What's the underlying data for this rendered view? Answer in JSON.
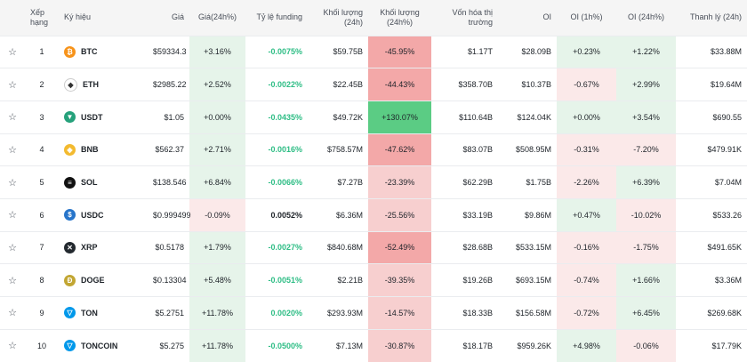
{
  "header": {
    "rank": "Xếp hạng",
    "symbol": "Ký hiệu",
    "price": "Giá",
    "price_change": "Giá(24h%)",
    "funding": "Tỷ lệ funding",
    "volume": "Khối lượng (24h)",
    "volume_change": "Khối lượng (24h%)",
    "market_cap_1": "Vốn hóa thị",
    "market_cap_2": "trường",
    "oi": "OI",
    "oi_1h": "OI (1h%)",
    "oi_24h": "OI (24h%)",
    "liq": "Thanh lý (24h)"
  },
  "rows": [
    {
      "rank": "1",
      "symbol": "BTC",
      "icon": "btc-icon",
      "glyph": "₿",
      "color": "#f7931a",
      "price": "$59334.3",
      "price_change": "+3.16%",
      "funding": "-0.0075%",
      "volume": "$59.75B",
      "volume_change": "-45.95%",
      "market_cap": "$1.17T",
      "oi": "$28.09B",
      "oi_1h": "+0.23%",
      "oi_24h": "+1.22%",
      "liq": "$33.88M"
    },
    {
      "rank": "2",
      "symbol": "ETH",
      "icon": "eth-icon",
      "glyph": "◆",
      "color": "#ffffff",
      "price": "$2985.22",
      "price_change": "+2.52%",
      "funding": "-0.0022%",
      "volume": "$22.45B",
      "volume_change": "-44.43%",
      "market_cap": "$358.70B",
      "oi": "$10.37B",
      "oi_1h": "-0.67%",
      "oi_24h": "+2.99%",
      "liq": "$19.64M"
    },
    {
      "rank": "3",
      "symbol": "USDT",
      "icon": "usdt-icon",
      "glyph": "▼",
      "color": "#26a17b",
      "price": "$1.05",
      "price_change": "+0.00%",
      "funding": "-0.0435%",
      "volume": "$49.72K",
      "volume_change": "+130.07%",
      "market_cap": "$110.64B",
      "oi": "$124.04K",
      "oi_1h": "+0.00%",
      "oi_24h": "+3.54%",
      "liq": "$690.55"
    },
    {
      "rank": "4",
      "symbol": "BNB",
      "icon": "bnb-icon",
      "glyph": "◈",
      "color": "#f3ba2f",
      "price": "$562.37",
      "price_change": "+2.71%",
      "funding": "-0.0016%",
      "volume": "$758.57M",
      "volume_change": "-47.62%",
      "market_cap": "$83.07B",
      "oi": "$508.95M",
      "oi_1h": "-0.31%",
      "oi_24h": "-7.20%",
      "liq": "$479.91K"
    },
    {
      "rank": "5",
      "symbol": "SOL",
      "icon": "sol-icon",
      "glyph": "≡",
      "color": "#111111",
      "price": "$138.546",
      "price_change": "+6.84%",
      "funding": "-0.0066%",
      "volume": "$7.27B",
      "volume_change": "-23.39%",
      "market_cap": "$62.29B",
      "oi": "$1.75B",
      "oi_1h": "-2.26%",
      "oi_24h": "+6.39%",
      "liq": "$7.04M"
    },
    {
      "rank": "6",
      "symbol": "USDC",
      "icon": "usdc-icon",
      "glyph": "$",
      "color": "#2775ca",
      "price": "$0.999499",
      "price_change": "-0.09%",
      "funding": "0.0052%",
      "volume": "$6.36M",
      "volume_change": "-25.56%",
      "market_cap": "$33.19B",
      "oi": "$9.86M",
      "oi_1h": "+0.47%",
      "oi_24h": "-10.02%",
      "liq": "$533.26"
    },
    {
      "rank": "7",
      "symbol": "XRP",
      "icon": "xrp-icon",
      "glyph": "✕",
      "color": "#23292f",
      "price": "$0.5178",
      "price_change": "+1.79%",
      "funding": "-0.0027%",
      "volume": "$840.68M",
      "volume_change": "-52.49%",
      "market_cap": "$28.68B",
      "oi": "$533.15M",
      "oi_1h": "-0.16%",
      "oi_24h": "-1.75%",
      "liq": "$491.65K"
    },
    {
      "rank": "8",
      "symbol": "DOGE",
      "icon": "doge-icon",
      "glyph": "Ð",
      "color": "#c2a633",
      "price": "$0.13304",
      "price_change": "+5.48%",
      "funding": "-0.0051%",
      "volume": "$2.21B",
      "volume_change": "-39.35%",
      "market_cap": "$19.26B",
      "oi": "$693.15M",
      "oi_1h": "-0.74%",
      "oi_24h": "+1.66%",
      "liq": "$3.36M"
    },
    {
      "rank": "9",
      "symbol": "TON",
      "icon": "ton-icon",
      "glyph": "▽",
      "color": "#0098ea",
      "price": "$5.2751",
      "price_change": "+11.78%",
      "funding": "0.0020%",
      "volume": "$293.93M",
      "volume_change": "-14.57%",
      "market_cap": "$18.33B",
      "oi": "$156.58M",
      "oi_1h": "-0.72%",
      "oi_24h": "+6.45%",
      "liq": "$269.68K"
    },
    {
      "rank": "10",
      "symbol": "TONCOIN",
      "icon": "toncoin-icon",
      "glyph": "▽",
      "color": "#0098ea",
      "price": "$5.275",
      "price_change": "+11.78%",
      "funding": "-0.0500%",
      "volume": "$7.13M",
      "volume_change": "-30.87%",
      "market_cap": "$18.17B",
      "oi": "$959.26K",
      "oi_1h": "+4.98%",
      "oi_24h": "-0.06%",
      "liq": "$17.79K"
    }
  ]
}
